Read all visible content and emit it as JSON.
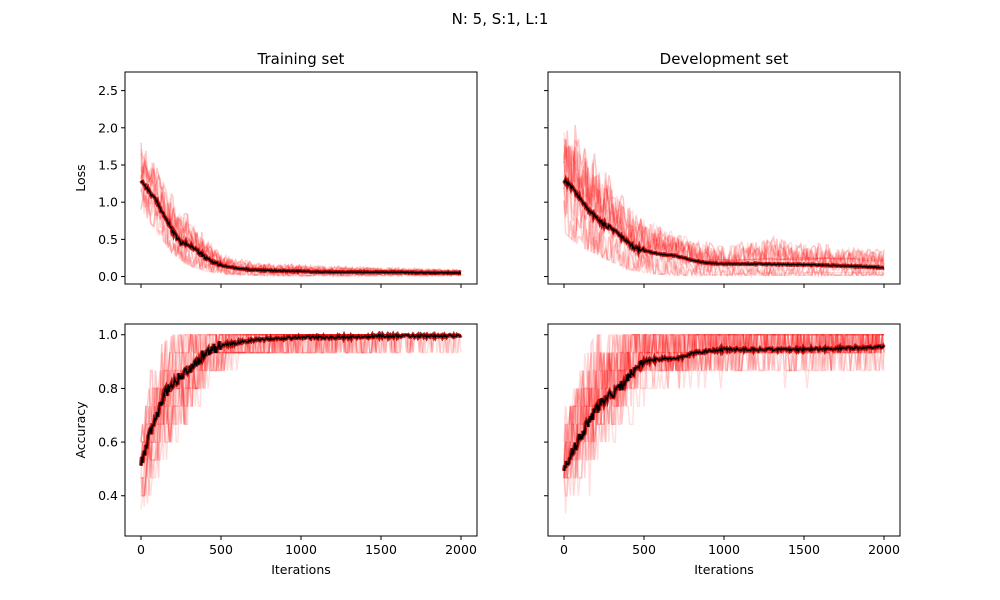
{
  "figure": {
    "suptitle": "N: 5, S:1, L:1"
  },
  "colors": {
    "runs": "#ff0000",
    "mean": "#000000",
    "axes": "#000000"
  },
  "chart_data": [
    {
      "type": "line",
      "title": "Training set",
      "xlabel": "",
      "ylabel": "Loss",
      "xlim": [
        -100,
        2100
      ],
      "ylim": [
        -0.1,
        2.75
      ],
      "xticks": [
        0,
        500,
        1000,
        1500,
        2000
      ],
      "yticks": [
        0.0,
        0.5,
        1.0,
        1.5,
        2.0,
        2.5
      ],
      "ytick_labels": [
        "0.0",
        "0.5",
        "1.0",
        "1.5",
        "2.0",
        "2.5"
      ],
      "xtick_labels": [],
      "series": [
        {
          "x": [
            0,
            50,
            100,
            150,
            200,
            250,
            300,
            350,
            400,
            500,
            600,
            700,
            800,
            1000,
            1200,
            1500,
            1800,
            2000
          ],
          "values": [
            1.3,
            1.15,
            1.0,
            0.8,
            0.6,
            0.45,
            0.43,
            0.35,
            0.25,
            0.15,
            0.11,
            0.09,
            0.08,
            0.07,
            0.06,
            0.06,
            0.05,
            0.05
          ]
        }
      ],
      "runs_range": {
        "x": [
          0,
          100,
          200,
          300,
          400,
          500,
          700,
          1000,
          1500,
          2000
        ],
        "low": [
          0.9,
          0.6,
          0.3,
          0.15,
          0.08,
          0.04,
          0.02,
          0.01,
          0.01,
          0.01
        ],
        "high": [
          1.95,
          1.6,
          1.3,
          1.05,
          0.65,
          0.4,
          0.25,
          0.2,
          0.15,
          0.12
        ]
      }
    },
    {
      "type": "line",
      "title": "Development set",
      "xlabel": "",
      "ylabel": "",
      "xlim": [
        -100,
        2100
      ],
      "ylim": [
        -0.1,
        2.75
      ],
      "xticks": [
        0,
        500,
        1000,
        1500,
        2000
      ],
      "yticks": [
        0.0,
        0.5,
        1.0,
        1.5,
        2.0,
        2.5
      ],
      "ytick_labels": [],
      "xtick_labels": [],
      "series": [
        {
          "x": [
            0,
            50,
            100,
            150,
            200,
            250,
            300,
            350,
            400,
            450,
            500,
            600,
            700,
            800,
            900,
            1000,
            1200,
            1500,
            1800,
            2000
          ],
          "values": [
            1.3,
            1.2,
            1.05,
            0.9,
            0.8,
            0.7,
            0.65,
            0.55,
            0.45,
            0.38,
            0.35,
            0.3,
            0.28,
            0.22,
            0.18,
            0.17,
            0.17,
            0.16,
            0.14,
            0.12
          ]
        }
      ],
      "runs_range": {
        "x": [
          0,
          100,
          200,
          300,
          400,
          500,
          700,
          1000,
          1300,
          1500,
          2000
        ],
        "low": [
          0.6,
          0.4,
          0.3,
          0.2,
          0.1,
          0.05,
          0.02,
          0.02,
          0.02,
          0.02,
          0.02
        ],
        "high": [
          2.5,
          2.3,
          2.1,
          1.7,
          1.3,
          1.0,
          0.75,
          0.55,
          0.8,
          0.65,
          0.55
        ]
      }
    },
    {
      "type": "line",
      "title": "",
      "xlabel": "Iterations",
      "ylabel": "Accuracy",
      "xlim": [
        -100,
        2100
      ],
      "ylim": [
        0.25,
        1.04
      ],
      "xticks": [
        0,
        500,
        1000,
        1500,
        2000
      ],
      "yticks": [
        0.4,
        0.6,
        0.8,
        1.0
      ],
      "ytick_labels": [
        "0.4",
        "0.6",
        "0.8",
        "1.0"
      ],
      "xtick_labels": [
        "0",
        "500",
        "1000",
        "1500",
        "2000"
      ],
      "series": [
        {
          "x": [
            0,
            50,
            100,
            150,
            200,
            250,
            300,
            350,
            400,
            500,
            600,
            700,
            800,
            1000,
            1200,
            1500,
            1800,
            2000
          ],
          "values": [
            0.52,
            0.62,
            0.7,
            0.78,
            0.82,
            0.85,
            0.87,
            0.9,
            0.93,
            0.96,
            0.97,
            0.98,
            0.985,
            0.99,
            0.99,
            0.995,
            0.995,
            0.995
          ]
        }
      ],
      "runs_range": {
        "x": [
          0,
          100,
          200,
          300,
          400,
          500,
          700,
          1000,
          1500,
          2000
        ],
        "low": [
          0.35,
          0.4,
          0.45,
          0.55,
          0.7,
          0.78,
          0.85,
          0.88,
          0.9,
          0.92
        ],
        "high": [
          0.78,
          0.95,
          1.0,
          1.0,
          1.0,
          1.0,
          1.0,
          1.0,
          1.0,
          1.0
        ]
      }
    },
    {
      "type": "line",
      "title": "",
      "xlabel": "Iterations",
      "ylabel": "",
      "xlim": [
        -100,
        2100
      ],
      "ylim": [
        0.25,
        1.04
      ],
      "xticks": [
        0,
        500,
        1000,
        1500,
        2000
      ],
      "yticks": [
        0.4,
        0.6,
        0.8,
        1.0
      ],
      "ytick_labels": [],
      "xtick_labels": [
        "0",
        "500",
        "1000",
        "1500",
        "2000"
      ],
      "series": [
        {
          "x": [
            0,
            50,
            100,
            150,
            200,
            250,
            300,
            350,
            400,
            450,
            500,
            600,
            700,
            800,
            900,
            1000,
            1200,
            1500,
            1800,
            2000
          ],
          "values": [
            0.5,
            0.56,
            0.62,
            0.67,
            0.72,
            0.76,
            0.78,
            0.8,
            0.84,
            0.88,
            0.9,
            0.91,
            0.91,
            0.93,
            0.94,
            0.945,
            0.945,
            0.945,
            0.95,
            0.955
          ]
        }
      ],
      "runs_range": {
        "x": [
          0,
          100,
          200,
          300,
          400,
          500,
          700,
          1000,
          1500,
          2000
        ],
        "low": [
          0.28,
          0.3,
          0.35,
          0.45,
          0.55,
          0.6,
          0.7,
          0.7,
          0.72,
          0.75
        ],
        "high": [
          0.75,
          0.9,
          1.0,
          1.0,
          1.0,
          1.0,
          1.0,
          1.0,
          1.0,
          1.0
        ]
      }
    }
  ]
}
